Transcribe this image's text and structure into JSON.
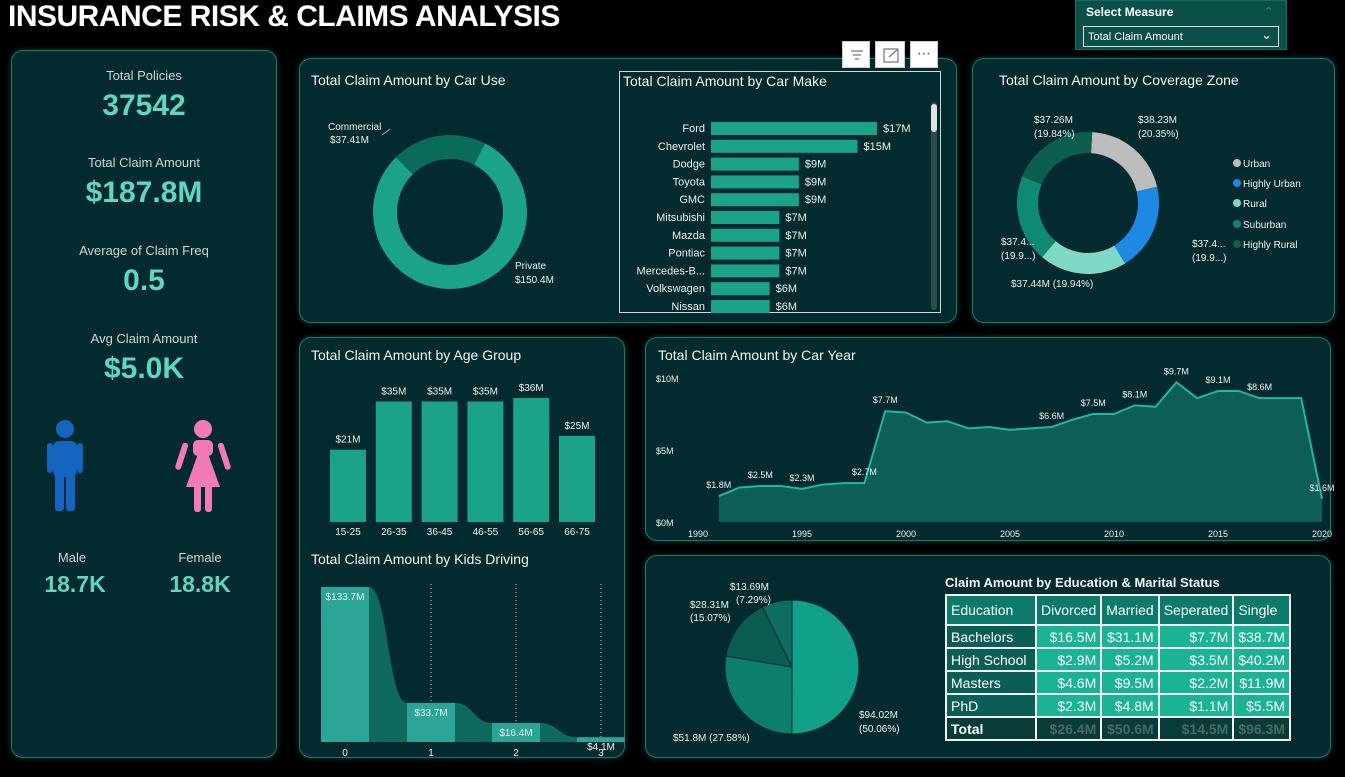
{
  "header": {
    "title": "INSURANCE RISK & CLAIMS ANALYSIS"
  },
  "measure_selector": {
    "label": "Select Measure",
    "value": "Total Claim Amount"
  },
  "kpis": {
    "total_policies_label": "Total Policies",
    "total_policies": "37542",
    "total_claim_label": "Total Claim Amount",
    "total_claim": "$187.8M",
    "claim_freq_label": "Average of Claim Freq",
    "claim_freq": "0.5",
    "avg_claim_label": "Avg Claim Amount",
    "avg_claim": "$5.0K",
    "male_label": "Male",
    "male_value": "18.7K",
    "female_label": "Female",
    "female_value": "18.8K"
  },
  "colors": {
    "male": "#1565c0",
    "female": "#f27bb7",
    "teal": "#1aa389",
    "dark_teal": "#0b6b5b"
  },
  "chart_data": [
    {
      "id": "car_use",
      "type": "pie",
      "title": "Total Claim Amount by Car Use",
      "slices": [
        {
          "label": "Commercial",
          "value": 37.41,
          "display": "$37.41M",
          "color": "#0b6b5b"
        },
        {
          "label": "Private",
          "value": 150.4,
          "display": "$150.4M",
          "color": "#1aa389"
        }
      ]
    },
    {
      "id": "car_make",
      "type": "bar",
      "title": "Total Claim Amount by Car Make",
      "categories": [
        "Ford",
        "Chevrolet",
        "Dodge",
        "Toyota",
        "GMC",
        "Mitsubishi",
        "Mazda",
        "Pontiac",
        "Mercedes-B...",
        "Volkswagen",
        "Nissan"
      ],
      "values": [
        17,
        15,
        9,
        9,
        9,
        7,
        7,
        7,
        7,
        6,
        6
      ],
      "labels": [
        "$17M",
        "$15M",
        "$9M",
        "$9M",
        "$9M",
        "$7M",
        "$7M",
        "$7M",
        "$7M",
        "$6M",
        "$6M"
      ]
    },
    {
      "id": "coverage_zone",
      "type": "pie",
      "title": "Total Claim Amount by Coverage Zone",
      "slices": [
        {
          "label": "Urban",
          "value": 38.23,
          "display": "$38.23M",
          "pct": "(20.35%)",
          "color": "#bdbdbd"
        },
        {
          "label": "Highly Urban",
          "value": 37.4,
          "display": "$37.4...",
          "pct": "(19.9...)",
          "color": "#1e88e5"
        },
        {
          "label": "Rural",
          "value": 37.44,
          "display": "$37.44M (19.94%)",
          "pct": "",
          "color": "#7fd8c6"
        },
        {
          "label": "Suburban",
          "value": 37.4,
          "display": "$37.4...",
          "pct": "(19.9...)",
          "color": "#0f8a72"
        },
        {
          "label": "Highly Rural",
          "value": 37.26,
          "display": "$37.26M",
          "pct": "(19.84%)",
          "color": "#0b5e50"
        }
      ]
    },
    {
      "id": "age_group",
      "type": "bar",
      "title": "Total Claim Amount by Age Group",
      "categories": [
        "15-25",
        "26-35",
        "36-45",
        "46-55",
        "56-65",
        "66-75"
      ],
      "values": [
        21,
        35,
        35,
        35,
        36,
        25
      ],
      "labels": [
        "$21M",
        "$35M",
        "$35M",
        "$35M",
        "$36M",
        "$25M"
      ]
    },
    {
      "id": "car_year",
      "type": "area",
      "title": "Total Claim Amount by Car Year",
      "ylim": [
        0,
        10
      ],
      "yticks": [
        "$0M",
        "$5M",
        "$10M"
      ],
      "xticks": [
        "1990",
        "1995",
        "2000",
        "2005",
        "2010",
        "2015",
        "2020"
      ],
      "x": [
        1991,
        1992,
        1993,
        1994,
        1995,
        1996,
        1997,
        1998,
        1999,
        2000,
        2001,
        2002,
        2003,
        2004,
        2005,
        2006,
        2007,
        2008,
        2009,
        2010,
        2011,
        2012,
        2013,
        2014,
        2015,
        2016,
        2017,
        2018,
        2019,
        2020
      ],
      "values": [
        1.8,
        2.4,
        2.5,
        2.5,
        2.3,
        2.6,
        2.7,
        2.7,
        7.7,
        7.6,
        6.9,
        7.0,
        6.5,
        6.6,
        6.4,
        6.5,
        6.6,
        7.1,
        7.5,
        7.5,
        8.1,
        8.0,
        9.7,
        8.6,
        9.1,
        9.1,
        8.6,
        8.6,
        8.6,
        1.6
      ],
      "labels": [
        {
          "x": 1991,
          "text": "$1.8M"
        },
        {
          "x": 1993,
          "text": "$2.5M"
        },
        {
          "x": 1995,
          "text": "$2.3M"
        },
        {
          "x": 1998,
          "text": "$2.7M"
        },
        {
          "x": 1999,
          "text": "$7.7M"
        },
        {
          "x": 2007,
          "text": "$6.6M"
        },
        {
          "x": 2009,
          "text": "$7.5M"
        },
        {
          "x": 2011,
          "text": "$8.1M"
        },
        {
          "x": 2013,
          "text": "$9.7M"
        },
        {
          "x": 2015,
          "text": "$9.1M"
        },
        {
          "x": 2017,
          "text": "$8.6M"
        },
        {
          "x": 2020,
          "text": "$1.6M"
        }
      ]
    },
    {
      "id": "kids_driving",
      "type": "area",
      "title": "Total Claim Amount by Kids Driving",
      "categories": [
        "0",
        "1",
        "2",
        "3"
      ],
      "values": [
        133.7,
        33.7,
        16.4,
        4.1
      ],
      "labels": [
        "$133.7M",
        "$33.7M",
        "$16.4M",
        "$4.1M"
      ]
    },
    {
      "id": "education_pie",
      "type": "pie",
      "title": "",
      "slices": [
        {
          "value": 94.02,
          "display": "$94.02M",
          "pct": "(50.06%)",
          "color": "#11a08a"
        },
        {
          "value": 51.8,
          "display": "$51.8M (27.58%)",
          "pct": "",
          "color": "#0e7e6c"
        },
        {
          "value": 28.31,
          "display": "$28.31M",
          "pct": "(15.07%)",
          "color": "#0a5d51"
        },
        {
          "value": 13.69,
          "display": "$13.69M",
          "pct": "(7.29%)",
          "color": "#0d6e5f"
        }
      ]
    },
    {
      "id": "education_marital",
      "type": "table",
      "title": "Claim Amount by Education & Marital Status",
      "columns": [
        "Education",
        "Divorced",
        "Married",
        "Seperated",
        "Single"
      ],
      "rows": [
        [
          "Bachelors",
          "$16.5M",
          "$31.1M",
          "$7.7M",
          "$38.7M"
        ],
        [
          "High School",
          "$2.9M",
          "$5.2M",
          "$3.5M",
          "$40.2M"
        ],
        [
          "Masters",
          "$4.6M",
          "$9.5M",
          "$2.2M",
          "$11.9M"
        ],
        [
          "PhD",
          "$2.3M",
          "$4.8M",
          "$1.1M",
          "$5.5M"
        ],
        [
          "Total",
          "$26.4M",
          "$50.6M",
          "$14.5M",
          "$96.3M"
        ]
      ]
    }
  ]
}
